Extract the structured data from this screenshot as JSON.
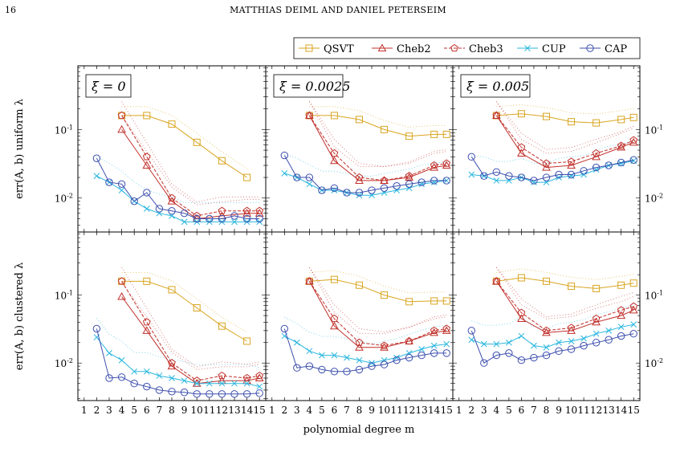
{
  "header": {
    "page_number": "16",
    "running_head": "MATTHIAS DEIML AND DANIEL PETERSEIM"
  },
  "colors": {
    "QSVT": "#d9a521",
    "Cheb2": "#c0302b",
    "Cheb3": "#c0302b",
    "CUP": "#2bb7df",
    "CAP": "#3d4fae"
  },
  "chart_data": {
    "type": "line",
    "xlabel": "polynomial degree m",
    "x_ticks": [
      1,
      2,
      3,
      4,
      5,
      6,
      7,
      8,
      9,
      10,
      11,
      12,
      13,
      14,
      15
    ],
    "xlim": [
      0.5,
      15.5
    ],
    "y_scale": "log",
    "ylim": [
      0.003,
      0.8
    ],
    "y_ticks": [
      0.01,
      0.1
    ],
    "y_tick_labels": [
      "10^{-2}",
      "10^{-1}"
    ],
    "legend": {
      "placement": "top-right",
      "entries": [
        {
          "name": "QSVT",
          "marker": "square",
          "dash": "solid"
        },
        {
          "name": "Cheb2",
          "marker": "triangle",
          "dash": "solid"
        },
        {
          "name": "Cheb3",
          "marker": "pentagon",
          "dash": "dashed"
        },
        {
          "name": "CUP",
          "marker": "x",
          "dash": "solid"
        },
        {
          "name": "CAP",
          "marker": "circle",
          "dash": "solid"
        }
      ]
    },
    "row_labels": [
      "err(A, b) uniform λ",
      "err(A, b) clustered λ"
    ],
    "panels": [
      {
        "row": 0,
        "col": 0,
        "title": "ξ = 0",
        "series": [
          {
            "name": "QSVT",
            "x": [
              4,
              6,
              8,
              10,
              12,
              14
            ],
            "y": [
              0.16,
              0.16,
              0.12,
              0.065,
              0.035,
              0.02
            ]
          },
          {
            "name": "Cheb2",
            "x": [
              4,
              6,
              8,
              10,
              12,
              14,
              15
            ],
            "y": [
              0.1,
              0.03,
              0.009,
              0.005,
              0.0055,
              0.006,
              0.006
            ]
          },
          {
            "name": "Cheb3",
            "x": [
              4,
              6,
              8,
              10,
              12,
              14,
              15
            ],
            "y": [
              0.16,
              0.04,
              0.01,
              0.0055,
              0.0065,
              0.0065,
              0.0065
            ]
          },
          {
            "name": "CUP",
            "x": [
              2,
              3,
              4,
              5,
              6,
              7,
              8,
              9,
              10,
              11,
              12,
              13,
              14,
              15
            ],
            "y": [
              0.021,
              0.017,
              0.013,
              0.009,
              0.007,
              0.006,
              0.0055,
              0.0045,
              0.0045,
              0.0045,
              0.0045,
              0.0045,
              0.0045,
              0.0045
            ]
          },
          {
            "name": "CAP",
            "x": [
              2,
              3,
              4,
              5,
              6,
              7,
              8,
              9,
              10,
              11,
              12,
              13,
              14,
              15
            ],
            "y": [
              0.038,
              0.017,
              0.016,
              0.009,
              0.012,
              0.007,
              0.0065,
              0.006,
              0.005,
              0.005,
              0.005,
              0.0055,
              0.005,
              0.005
            ]
          }
        ]
      },
      {
        "row": 0,
        "col": 1,
        "title": "ξ = 0.0025",
        "series": [
          {
            "name": "QSVT",
            "x": [
              4,
              6,
              8,
              10,
              12,
              14,
              15
            ],
            "y": [
              0.16,
              0.16,
              0.14,
              0.1,
              0.08,
              0.085,
              0.085
            ]
          },
          {
            "name": "Cheb2",
            "x": [
              4,
              6,
              8,
              10,
              12,
              14,
              15
            ],
            "y": [
              0.16,
              0.035,
              0.018,
              0.018,
              0.02,
              0.028,
              0.03
            ]
          },
          {
            "name": "Cheb3",
            "x": [
              4,
              6,
              8,
              10,
              12,
              14,
              15
            ],
            "y": [
              0.16,
              0.045,
              0.02,
              0.018,
              0.021,
              0.03,
              0.032
            ]
          },
          {
            "name": "CUP",
            "x": [
              2,
              3,
              4,
              5,
              6,
              7,
              8,
              9,
              10,
              11,
              12,
              13,
              14,
              15
            ],
            "y": [
              0.023,
              0.02,
              0.016,
              0.013,
              0.013,
              0.012,
              0.011,
              0.011,
              0.012,
              0.013,
              0.014,
              0.016,
              0.017,
              0.018
            ]
          },
          {
            "name": "CAP",
            "x": [
              2,
              3,
              4,
              5,
              6,
              7,
              8,
              9,
              10,
              11,
              12,
              13,
              14,
              15
            ],
            "y": [
              0.042,
              0.02,
              0.02,
              0.013,
              0.014,
              0.012,
              0.012,
              0.013,
              0.014,
              0.015,
              0.016,
              0.017,
              0.018,
              0.018
            ]
          }
        ]
      },
      {
        "row": 0,
        "col": 2,
        "title": "ξ = 0.005",
        "series": [
          {
            "name": "QSVT",
            "x": [
              4,
              6,
              8,
              10,
              12,
              14,
              15
            ],
            "y": [
              0.16,
              0.17,
              0.155,
              0.13,
              0.125,
              0.14,
              0.15
            ]
          },
          {
            "name": "Cheb2",
            "x": [
              4,
              6,
              8,
              10,
              12,
              14,
              15
            ],
            "y": [
              0.16,
              0.045,
              0.028,
              0.03,
              0.04,
              0.055,
              0.065
            ]
          },
          {
            "name": "Cheb3",
            "x": [
              4,
              6,
              8,
              10,
              12,
              14,
              15
            ],
            "y": [
              0.16,
              0.055,
              0.032,
              0.034,
              0.045,
              0.058,
              0.07
            ]
          },
          {
            "name": "CUP",
            "x": [
              2,
              3,
              4,
              5,
              6,
              7,
              8,
              9,
              10,
              11,
              12,
              13,
              14,
              15
            ],
            "y": [
              0.022,
              0.021,
              0.018,
              0.018,
              0.02,
              0.017,
              0.017,
              0.02,
              0.021,
              0.022,
              0.026,
              0.03,
              0.032,
              0.035
            ]
          },
          {
            "name": "CAP",
            "x": [
              2,
              3,
              4,
              5,
              6,
              7,
              8,
              9,
              10,
              11,
              12,
              13,
              14,
              15
            ],
            "y": [
              0.04,
              0.021,
              0.024,
              0.021,
              0.02,
              0.018,
              0.02,
              0.022,
              0.022,
              0.025,
              0.028,
              0.03,
              0.033,
              0.036
            ]
          }
        ]
      },
      {
        "row": 1,
        "col": 0,
        "title": "",
        "series": [
          {
            "name": "QSVT",
            "x": [
              4,
              6,
              8,
              10,
              12,
              14
            ],
            "y": [
              0.16,
              0.16,
              0.12,
              0.065,
              0.035,
              0.021
            ]
          },
          {
            "name": "Cheb2",
            "x": [
              4,
              6,
              8,
              10,
              12,
              14,
              15
            ],
            "y": [
              0.095,
              0.03,
              0.009,
              0.005,
              0.0055,
              0.0055,
              0.006
            ]
          },
          {
            "name": "Cheb3",
            "x": [
              4,
              6,
              8,
              10,
              12,
              14,
              15
            ],
            "y": [
              0.16,
              0.04,
              0.01,
              0.0055,
              0.0065,
              0.006,
              0.0065
            ]
          },
          {
            "name": "CUP",
            "x": [
              2,
              3,
              4,
              5,
              6,
              7,
              8,
              9,
              10,
              11,
              12,
              13,
              14,
              15
            ],
            "y": [
              0.024,
              0.014,
              0.011,
              0.0075,
              0.0075,
              0.0065,
              0.006,
              0.0055,
              0.005,
              0.005,
              0.005,
              0.005,
              0.005,
              0.0045
            ]
          },
          {
            "name": "CAP",
            "x": [
              2,
              3,
              4,
              5,
              6,
              7,
              8,
              9,
              10,
              11,
              12,
              13,
              14,
              15
            ],
            "y": [
              0.032,
              0.006,
              0.0062,
              0.005,
              0.0045,
              0.004,
              0.0038,
              0.0037,
              0.0035,
              0.0035,
              0.0035,
              0.0035,
              0.0035,
              0.0036
            ]
          }
        ]
      },
      {
        "row": 1,
        "col": 1,
        "title": "",
        "series": [
          {
            "name": "QSVT",
            "x": [
              4,
              6,
              8,
              10,
              12,
              14,
              15
            ],
            "y": [
              0.16,
              0.17,
              0.14,
              0.1,
              0.08,
              0.082,
              0.082
            ]
          },
          {
            "name": "Cheb2",
            "x": [
              4,
              6,
              8,
              10,
              12,
              14,
              15
            ],
            "y": [
              0.16,
              0.035,
              0.017,
              0.017,
              0.021,
              0.028,
              0.03
            ]
          },
          {
            "name": "Cheb3",
            "x": [
              4,
              6,
              8,
              10,
              12,
              14,
              15
            ],
            "y": [
              0.16,
              0.045,
              0.02,
              0.018,
              0.021,
              0.03,
              0.032
            ]
          },
          {
            "name": "CUP",
            "x": [
              2,
              3,
              4,
              5,
              6,
              7,
              8,
              9,
              10,
              11,
              12,
              13,
              14,
              15
            ],
            "y": [
              0.025,
              0.02,
              0.015,
              0.013,
              0.013,
              0.012,
              0.011,
              0.01,
              0.011,
              0.012,
              0.014,
              0.016,
              0.018,
              0.019
            ]
          },
          {
            "name": "CAP",
            "x": [
              2,
              3,
              4,
              5,
              6,
              7,
              8,
              9,
              10,
              11,
              12,
              13,
              14,
              15
            ],
            "y": [
              0.032,
              0.0085,
              0.009,
              0.008,
              0.0075,
              0.0075,
              0.008,
              0.009,
              0.0095,
              0.011,
              0.012,
              0.013,
              0.014,
              0.014
            ]
          }
        ]
      },
      {
        "row": 1,
        "col": 2,
        "title": "",
        "series": [
          {
            "name": "QSVT",
            "x": [
              4,
              6,
              8,
              10,
              12,
              14,
              15
            ],
            "y": [
              0.16,
              0.18,
              0.16,
              0.135,
              0.125,
              0.14,
              0.15
            ]
          },
          {
            "name": "Cheb2",
            "x": [
              4,
              6,
              8,
              10,
              12,
              14,
              15
            ],
            "y": [
              0.16,
              0.045,
              0.028,
              0.03,
              0.04,
              0.05,
              0.06
            ]
          },
          {
            "name": "Cheb3",
            "x": [
              4,
              6,
              8,
              10,
              12,
              14,
              15
            ],
            "y": [
              0.16,
              0.055,
              0.03,
              0.033,
              0.045,
              0.06,
              0.068
            ]
          },
          {
            "name": "CUP",
            "x": [
              2,
              3,
              4,
              5,
              6,
              7,
              8,
              9,
              10,
              11,
              12,
              13,
              14,
              15
            ],
            "y": [
              0.022,
              0.019,
              0.019,
              0.02,
              0.025,
              0.018,
              0.017,
              0.02,
              0.021,
              0.023,
              0.027,
              0.03,
              0.034,
              0.037
            ]
          },
          {
            "name": "CAP",
            "x": [
              2,
              3,
              4,
              5,
              6,
              7,
              8,
              9,
              10,
              11,
              12,
              13,
              14,
              15
            ],
            "y": [
              0.03,
              0.01,
              0.013,
              0.014,
              0.011,
              0.012,
              0.013,
              0.015,
              0.016,
              0.018,
              0.02,
              0.022,
              0.025,
              0.027
            ]
          }
        ]
      }
    ]
  }
}
